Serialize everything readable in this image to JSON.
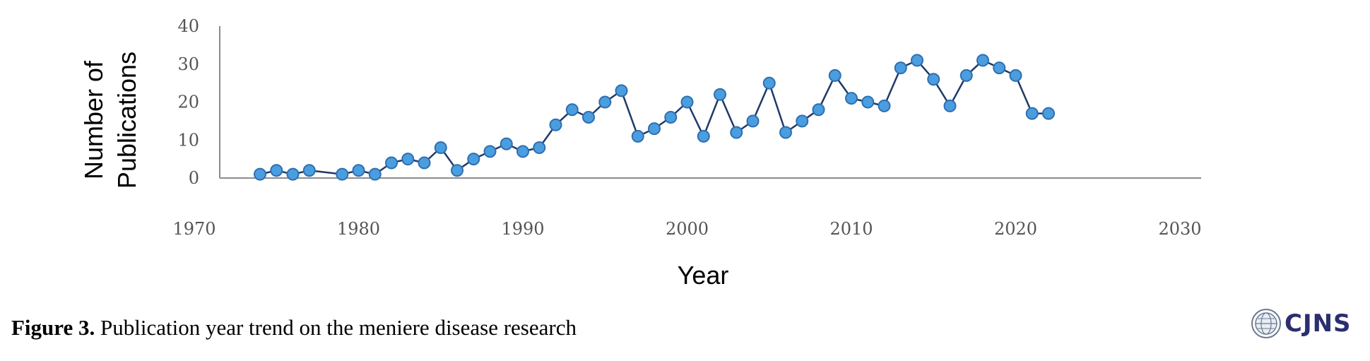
{
  "chart_data": {
    "type": "line",
    "title": "",
    "xlabel": "Year",
    "ylabel_lines": [
      "Number of",
      "Publications"
    ],
    "xlim": [
      1970,
      2030
    ],
    "ylim": [
      0,
      40
    ],
    "xticks": [
      "1970",
      "1980",
      "1990",
      "2000",
      "2010",
      "2020",
      "2030"
    ],
    "yticks": [
      "0",
      "10",
      "20",
      "30",
      "40"
    ],
    "grid": false,
    "legend": "none",
    "series": [
      {
        "x": [
          1974,
          1975,
          1976,
          1977,
          1979,
          1980,
          1981,
          1982,
          1983,
          1984,
          1985,
          1986,
          1987,
          1988,
          1989,
          1990,
          1991,
          1992,
          1993,
          1994,
          1995,
          1996,
          1997,
          1998,
          1999,
          2000,
          2001,
          2002,
          2003,
          2004,
          2005,
          2006,
          2007,
          2008,
          2009,
          2010,
          2011,
          2012,
          2013,
          2014,
          2015,
          2016,
          2017,
          2018,
          2019,
          2020,
          2021,
          2022
        ],
        "y": [
          1,
          2,
          1,
          2,
          1,
          2,
          1,
          4,
          5,
          4,
          8,
          2,
          5,
          7,
          9,
          7,
          8,
          14,
          18,
          16,
          20,
          23,
          11,
          13,
          16,
          20,
          11,
          22,
          12,
          15,
          25,
          12,
          15,
          18,
          27,
          21,
          20,
          19,
          29,
          31,
          26,
          19,
          27,
          31,
          29,
          27,
          17,
          17
        ]
      }
    ]
  },
  "colors": {
    "line": "#1f3a68",
    "marker_fill": "#4a9ee0",
    "marker_stroke": "#2e6fb0",
    "axis": "#8c8c8c"
  },
  "caption": {
    "label": "Figure 3.",
    "text": "Publication year trend on the meniere disease  research"
  },
  "logo": {
    "text": "CJNS",
    "icon": "globe-seal-icon"
  }
}
